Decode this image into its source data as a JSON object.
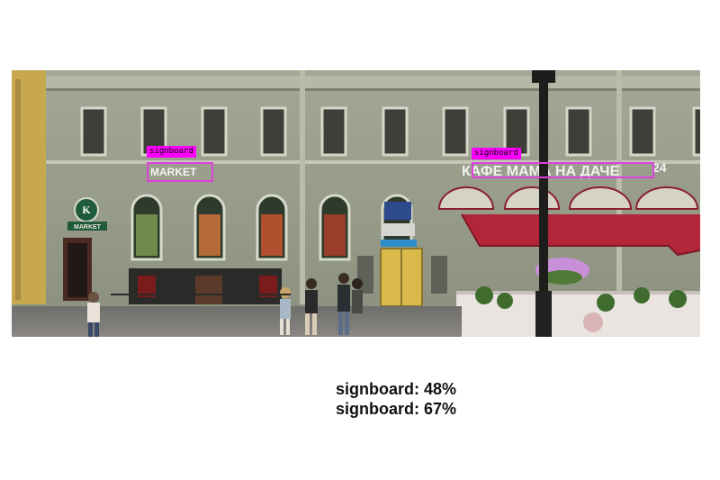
{
  "detections": [
    {
      "label": "signboard",
      "score_text": "signboard: 48%",
      "confidence": 0.48
    },
    {
      "label": "signboard",
      "score_text": "signboard: 67%",
      "confidence": 0.67
    }
  ],
  "storefront_text": {
    "market_sign": "MARKET",
    "cafe_sign": "КАФЕ МАМА НА ДАЧЕ",
    "house_number": "24",
    "left_logo_sign": "MARKET"
  },
  "colors": {
    "box": "#e040e0",
    "tag_bg": "#ff00ff",
    "awning": "#b3263a",
    "facade": "#9aa08c"
  }
}
